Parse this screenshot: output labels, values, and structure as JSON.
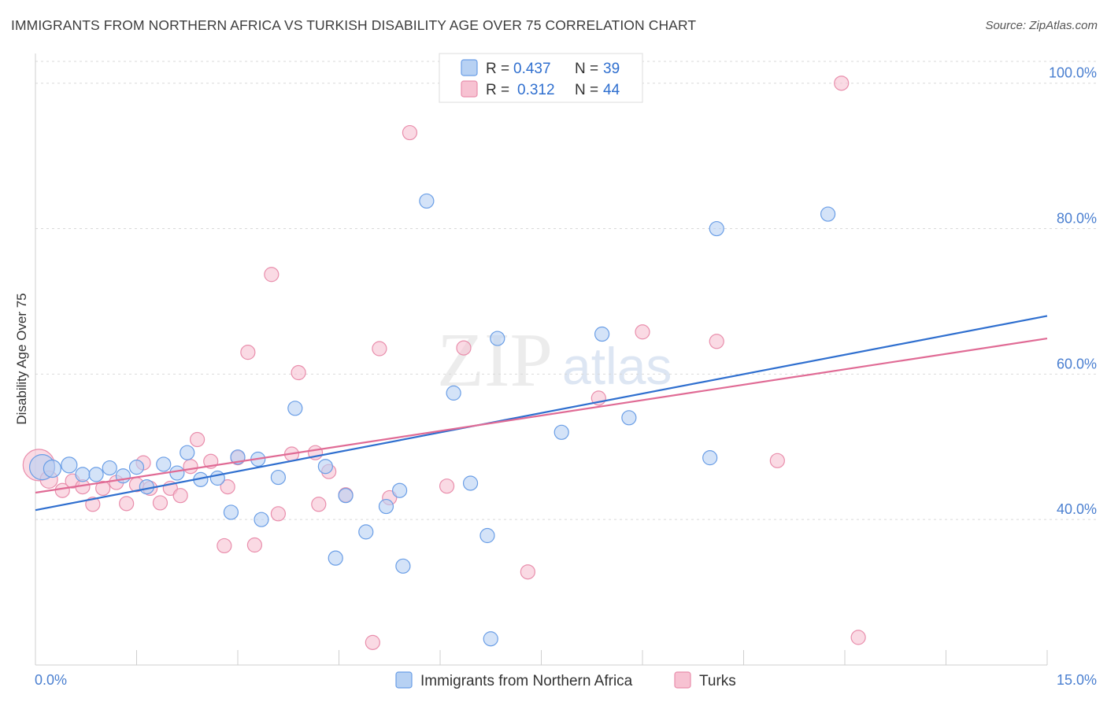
{
  "title": "IMMIGRANTS FROM NORTHERN AFRICA VS TURKISH DISABILITY AGE OVER 75 CORRELATION CHART",
  "source": "Source: ZipAtlas.com",
  "watermark": {
    "zip": "ZIP",
    "atlas": "atlas"
  },
  "colors": {
    "blue_fill": "#b7d1f3",
    "blue_stroke": "#6a9ee6",
    "blue_line": "#2f6fcf",
    "pink_fill": "#f7c2d2",
    "pink_stroke": "#e98eac",
    "pink_line": "#e06b95",
    "grid": "#d9d9d9",
    "axis_label": "#4a7fd0"
  },
  "legend": {
    "rows": [
      {
        "r_label": "R = ",
        "r_value": "0.437",
        "n_label": "N = ",
        "n_value": "39",
        "series": "blue"
      },
      {
        "r_label": "R = ",
        "r_value": "0.312",
        "n_label": "N = ",
        "n_value": "44",
        "series": "pink"
      }
    ]
  },
  "chart_data": {
    "type": "scatter",
    "title": "IMMIGRANTS FROM NORTHERN AFRICA VS TURKISH DISABILITY AGE OVER 75 CORRELATION CHART",
    "xlabel": "",
    "ylabel": "Disability Age Over 75",
    "xlim": [
      0,
      15
    ],
    "ylim": [
      20,
      103
    ],
    "x_tick_labels": [
      "0.0%",
      "15.0%"
    ],
    "y_ticks": [
      40,
      60,
      80,
      100
    ],
    "y_tick_labels": [
      "40.0%",
      "60.0%",
      "80.0%",
      "100.0%"
    ],
    "legend_position": "bottom",
    "series": [
      {
        "name": "Immigrants from Northern Africa",
        "color": "blue",
        "R": 0.437,
        "N": 39,
        "trend": {
          "x0": 0,
          "y0": 41.3,
          "x1": 15,
          "y1": 68.0
        },
        "points": [
          [
            0.1,
            47.2,
            16
          ],
          [
            0.25,
            47.0,
            11
          ],
          [
            0.5,
            47.5,
            10
          ],
          [
            0.7,
            46.2,
            9
          ],
          [
            0.9,
            46.2,
            9
          ],
          [
            1.1,
            47.1,
            9
          ],
          [
            1.3,
            46.0,
            9
          ],
          [
            1.5,
            47.2,
            9
          ],
          [
            1.65,
            44.5,
            9
          ],
          [
            1.9,
            47.6,
            9
          ],
          [
            2.1,
            46.4,
            9
          ],
          [
            2.25,
            49.2,
            9
          ],
          [
            2.45,
            45.5,
            9
          ],
          [
            2.7,
            45.7,
            9
          ],
          [
            2.9,
            41.0,
            9
          ],
          [
            3.0,
            48.6,
            9
          ],
          [
            3.3,
            48.3,
            9
          ],
          [
            3.35,
            40.0,
            9
          ],
          [
            3.6,
            45.8,
            9
          ],
          [
            3.85,
            55.3,
            9
          ],
          [
            4.3,
            47.3,
            9
          ],
          [
            4.45,
            34.7,
            9
          ],
          [
            4.6,
            43.3,
            9
          ],
          [
            4.9,
            38.3,
            9
          ],
          [
            5.2,
            41.8,
            9
          ],
          [
            5.4,
            44.0,
            9
          ],
          [
            5.45,
            33.6,
            9
          ],
          [
            5.8,
            83.8,
            9
          ],
          [
            6.2,
            57.4,
            9
          ],
          [
            6.45,
            45.0,
            9
          ],
          [
            6.7,
            37.8,
            9
          ],
          [
            6.75,
            23.6,
            9
          ],
          [
            6.85,
            64.9,
            9
          ],
          [
            7.8,
            52.0,
            9
          ],
          [
            8.4,
            65.5,
            9
          ],
          [
            8.8,
            54.0,
            9
          ],
          [
            10.0,
            48.5,
            9
          ],
          [
            10.1,
            80.0,
            9
          ],
          [
            11.75,
            82.0,
            9
          ]
        ]
      },
      {
        "name": "Turks",
        "color": "pink",
        "R": 0.312,
        "N": 44,
        "trend": {
          "x0": 0,
          "y0": 43.7,
          "x1": 15,
          "y1": 64.9
        },
        "points": [
          [
            0.05,
            47.5,
            20
          ],
          [
            0.2,
            45.5,
            11
          ],
          [
            0.4,
            44.0,
            9
          ],
          [
            0.55,
            45.3,
            9
          ],
          [
            0.7,
            44.5,
            9
          ],
          [
            0.85,
            42.1,
            9
          ],
          [
            1.0,
            44.3,
            9
          ],
          [
            1.2,
            45.1,
            9
          ],
          [
            1.35,
            42.2,
            9
          ],
          [
            1.5,
            44.8,
            9
          ],
          [
            1.6,
            47.8,
            9
          ],
          [
            1.7,
            44.3,
            9
          ],
          [
            1.85,
            42.3,
            9
          ],
          [
            2.0,
            44.3,
            9
          ],
          [
            2.15,
            43.3,
            9
          ],
          [
            2.3,
            47.3,
            9
          ],
          [
            2.4,
            51.0,
            9
          ],
          [
            2.6,
            48.0,
            9
          ],
          [
            2.8,
            36.4,
            9
          ],
          [
            2.85,
            44.5,
            9
          ],
          [
            3.0,
            48.5,
            9
          ],
          [
            3.15,
            63.0,
            9
          ],
          [
            3.25,
            36.5,
            9
          ],
          [
            3.5,
            73.7,
            9
          ],
          [
            3.6,
            40.8,
            9
          ],
          [
            3.8,
            49.0,
            9
          ],
          [
            3.9,
            60.2,
            9
          ],
          [
            4.15,
            49.2,
            9
          ],
          [
            4.2,
            42.1,
            9
          ],
          [
            4.35,
            46.6,
            9
          ],
          [
            4.6,
            43.4,
            9
          ],
          [
            5.0,
            23.1,
            9
          ],
          [
            5.1,
            63.5,
            9
          ],
          [
            5.25,
            43.0,
            9
          ],
          [
            5.55,
            93.2,
            9
          ],
          [
            6.1,
            44.6,
            9
          ],
          [
            6.35,
            63.6,
            9
          ],
          [
            7.3,
            32.8,
            9
          ],
          [
            8.35,
            56.7,
            9
          ],
          [
            9.0,
            65.8,
            9
          ],
          [
            10.1,
            64.5,
            9
          ],
          [
            11.0,
            48.1,
            9
          ],
          [
            11.95,
            100.0,
            9
          ],
          [
            12.2,
            23.8,
            9
          ]
        ]
      }
    ]
  }
}
